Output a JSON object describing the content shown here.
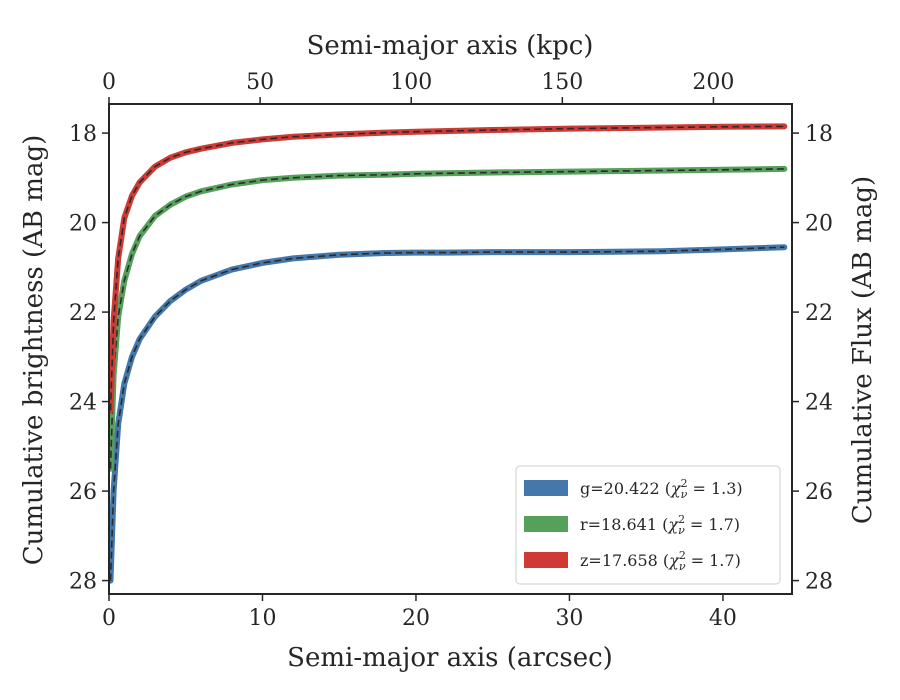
{
  "chart_data": {
    "type": "line",
    "xlabel": "Semi-major axis (arcsec)",
    "ylabel": "Cumulative brightness (AB mag)",
    "xlabel_top": "Semi-major axis (kpc)",
    "ylabel_right": "Cumulative Flux (AB mag)",
    "xlim": [
      0,
      44.5
    ],
    "ylim": [
      28.3,
      17.35
    ],
    "y_inverted": true,
    "x_top_lim": [
      0,
      226
    ],
    "xticks": [
      "0",
      "10",
      "20",
      "30",
      "40"
    ],
    "xticks_top": [
      "0",
      "50",
      "100",
      "150",
      "200"
    ],
    "yticks": [
      "18",
      "20",
      "22",
      "24",
      "26",
      "28"
    ],
    "yticks_right": [
      "18",
      "20",
      "22",
      "24",
      "26",
      "28"
    ],
    "grid": false,
    "legend_position": "bottom-right",
    "series": [
      {
        "name": "g=20.422 (χ_ν^2=1.3)",
        "legend_main": "g=20.422 (",
        "legend_chi": "χ",
        "legend_sub": "ν",
        "legend_sup": "2",
        "legend_rest": " = 1.3)",
        "color": "#4477aa",
        "x": [
          0.1,
          0.3,
          0.6,
          1.0,
          1.5,
          2.0,
          3.0,
          4.0,
          5.0,
          6.0,
          8.0,
          10.0,
          12.0,
          15.0,
          18.0,
          20.0,
          22.0,
          25.0,
          28.0,
          30.0,
          33.0,
          36.0,
          40.0,
          44.0
        ],
        "y": [
          28.0,
          26.0,
          24.5,
          23.6,
          23.0,
          22.6,
          22.1,
          21.75,
          21.5,
          21.3,
          21.05,
          20.9,
          20.8,
          20.72,
          20.68,
          20.67,
          20.67,
          20.66,
          20.66,
          20.66,
          20.65,
          20.64,
          20.6,
          20.55
        ]
      },
      {
        "name": "r=18.641 (χ_ν^2=1.7)",
        "legend_main": "r=18.641 (",
        "legend_chi": "χ",
        "legend_sub": "ν",
        "legend_sup": "2",
        "legend_rest": " = 1.7)",
        "color": "#55a05a",
        "x": [
          0.1,
          0.3,
          0.6,
          1.0,
          1.5,
          2.0,
          3.0,
          4.0,
          5.0,
          6.0,
          8.0,
          10.0,
          12.0,
          15.0,
          18.0,
          20.0,
          25.0,
          30.0,
          35.0,
          40.0,
          44.0
        ],
        "y": [
          25.5,
          23.4,
          22.1,
          21.3,
          20.7,
          20.3,
          19.85,
          19.6,
          19.42,
          19.3,
          19.15,
          19.05,
          19.0,
          18.95,
          18.93,
          18.91,
          18.88,
          18.86,
          18.84,
          18.82,
          18.8
        ]
      },
      {
        "name": "z=17.658 (χ_ν^2=1.7)",
        "legend_main": "z=17.658 (",
        "legend_chi": "χ",
        "legend_sub": "ν",
        "legend_sup": "2",
        "legend_rest": " = 1.7)",
        "color": "#d03a35",
        "x": [
          0.1,
          0.3,
          0.6,
          1.0,
          1.5,
          2.0,
          3.0,
          4.0,
          5.0,
          6.0,
          8.0,
          10.0,
          12.0,
          15.0,
          18.0,
          20.0,
          25.0,
          30.0,
          35.0,
          40.0,
          44.0
        ],
        "y": [
          24.2,
          22.2,
          20.8,
          19.9,
          19.4,
          19.1,
          18.75,
          18.55,
          18.43,
          18.35,
          18.22,
          18.14,
          18.08,
          18.03,
          17.99,
          17.97,
          17.93,
          17.9,
          17.88,
          17.86,
          17.85
        ]
      }
    ]
  }
}
